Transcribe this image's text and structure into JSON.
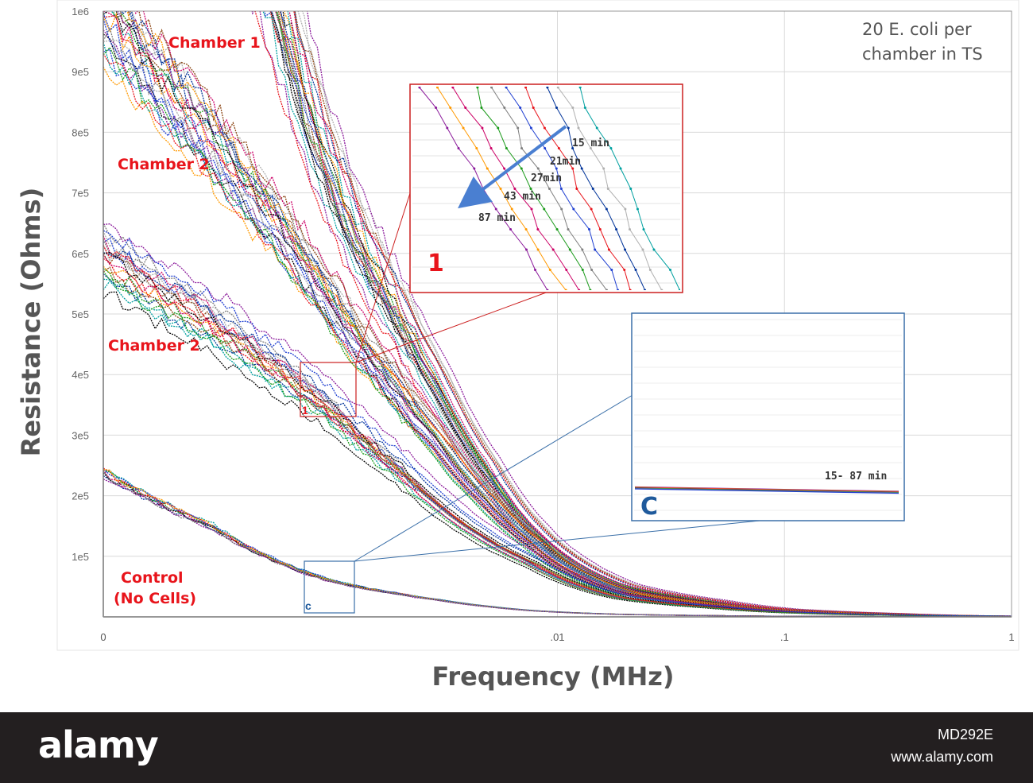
{
  "chart_data": {
    "type": "line",
    "title": "",
    "xlabel": "Frequency (MHz)",
    "ylabel": "Resistance (Ohms)",
    "x_scale": "log",
    "xlim": [
      0.0001,
      1
    ],
    "ylim": [
      0,
      1000000
    ],
    "x_ticks": [
      "0",
      ".01",
      ".1",
      "1"
    ],
    "y_ticks": [
      "1e5",
      "2e5",
      "3e5",
      "4e5",
      "5e5",
      "6e5",
      "7e5",
      "8e5",
      "9e5",
      "1e6"
    ],
    "y_tick_values": [
      100000,
      200000,
      300000,
      400000,
      500000,
      600000,
      700000,
      800000,
      900000,
      1000000
    ],
    "grid": true,
    "series_groups": [
      {
        "label": "Chamber 1",
        "x": [
          0.0001,
          0.0003,
          0.0006,
          0.001,
          0.002,
          0.003,
          0.005,
          0.008,
          0.01,
          0.02,
          0.05,
          0.1,
          0.3,
          1
        ],
        "y": [
          2400000,
          1380000,
          1010000,
          730000,
          500000,
          380000,
          240000,
          140000,
          108000,
          50000,
          25000,
          12000,
          5000,
          1000
        ]
      },
      {
        "label": "Chamber 2",
        "x": [
          0.0001,
          0.0003,
          0.0006,
          0.001,
          0.002,
          0.003,
          0.005,
          0.008,
          0.01,
          0.02,
          0.05,
          0.1,
          0.3,
          1
        ],
        "y": [
          1000000,
          780000,
          640000,
          520000,
          370000,
          290000,
          190000,
          120000,
          90000,
          40000,
          20000,
          10000,
          4000,
          1000
        ]
      },
      {
        "label": "Chamber 2",
        "x": [
          0.0001,
          0.0003,
          0.0006,
          0.001,
          0.002,
          0.003,
          0.005,
          0.008,
          0.01,
          0.02,
          0.05,
          0.1,
          0.3,
          1
        ],
        "y": [
          600000,
          490000,
          410000,
          350000,
          250000,
          190000,
          130000,
          90000,
          70000,
          32000,
          16000,
          8000,
          3000,
          1000
        ]
      },
      {
        "label": "Control\n(No Cells)",
        "x": [
          0.0001,
          0.0003,
          0.0006,
          0.001,
          0.002,
          0.003,
          0.005,
          0.008,
          0.01,
          0.02,
          0.05,
          0.1,
          0.3,
          1
        ],
        "y": [
          240000,
          150000,
          90000,
          60000,
          38000,
          28000,
          17000,
          10000,
          8000,
          4000,
          2000,
          1000,
          500,
          300
        ]
      }
    ],
    "annotations": [
      {
        "text": "Chamber 1",
        "anchor": "upper curve group"
      },
      {
        "text": "Chamber 2",
        "anchor": "second curve group"
      },
      {
        "text": "Chamber 2",
        "anchor": "third curve group"
      },
      {
        "text": "Control\n(No Cells)",
        "anchor": "lowest curve"
      },
      {
        "text": "20 E. coli per\nchamber in TS",
        "anchor": "top-right"
      }
    ],
    "insets": [
      {
        "id": "1",
        "marker": "1",
        "labels": [
          "15 min",
          "21min",
          "27min",
          "43 min",
          "87 min"
        ],
        "arrow": "toward lower-left (decreasing resistance with time)"
      },
      {
        "id": "C",
        "marker": "c",
        "labels": [
          "15- 87 min"
        ]
      }
    ]
  },
  "labels": {
    "chamber1": "Chamber 1",
    "chamber2_a": "Chamber 2",
    "chamber2_b": "Chamber 2",
    "control_line1": "Control",
    "control_line2": "(No Cells)",
    "note_line1": "20 E. coli per",
    "note_line2": "chamber in TS",
    "zoom1_marker": "1",
    "zoomc_marker": "c",
    "inset1_big": "1",
    "insetc_big": "C",
    "inset1_times": [
      "15 min",
      "21min",
      "27min",
      "43 min",
      "87 min"
    ],
    "insetc_time": "15- 87  min"
  },
  "colors": {
    "series": [
      "#000000",
      "#e8141b",
      "#1a9a1a",
      "#1f3fd1",
      "#ff9900",
      "#8b1a9b",
      "#7f7f7f",
      "#8b4513",
      "#b0b0b0",
      "#00a0a0",
      "#003399",
      "#cc0066"
    ],
    "annotation_red": "#e8141b",
    "inset_red_border": "#cc1f1f",
    "inset_blue_border": "#3a6fa8",
    "arrow_blue": "#4a7fd1",
    "footer_bg": "#231f20"
  },
  "footer": {
    "brand": "alamy",
    "image_id": "MD292E",
    "site": "www.alamy.com"
  }
}
